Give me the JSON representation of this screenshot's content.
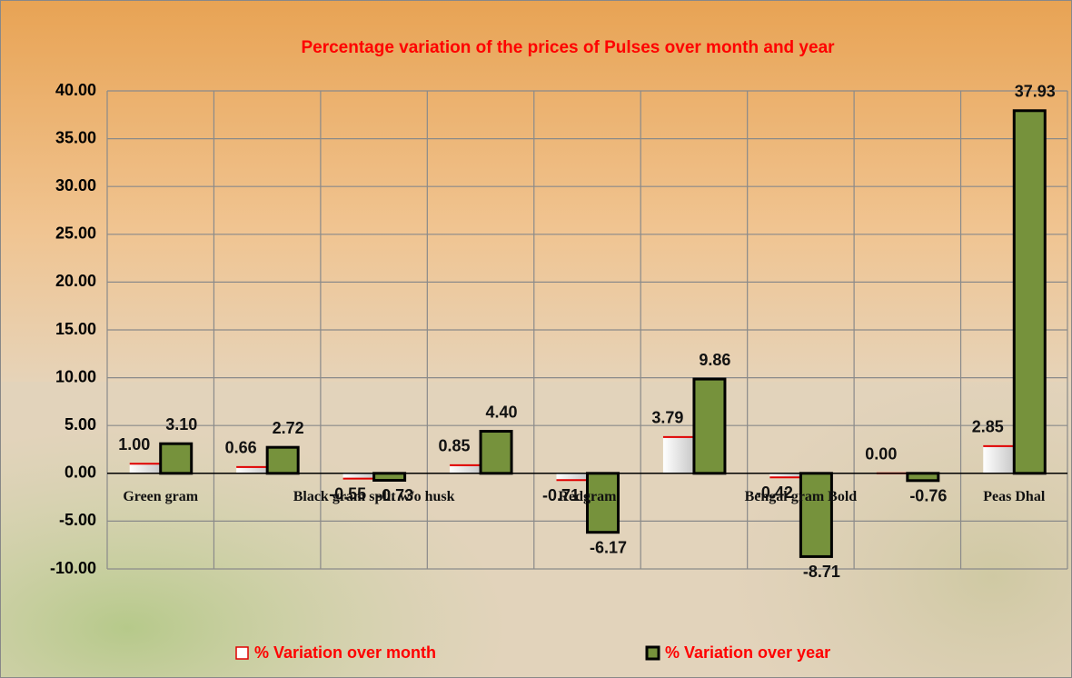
{
  "chart_data": {
    "type": "bar",
    "title": "Percentage variation of the prices of Pulses over month and year",
    "categories": [
      "Green gram",
      null,
      "Black gram split w/o husk",
      null,
      "Redgram",
      null,
      "Bengal gram Bold",
      null,
      "Peas Dhal"
    ],
    "series": [
      {
        "name": "% Variation over month",
        "color": "#ffffff",
        "edge": "#e00000",
        "values": [
          1.0,
          0.66,
          -0.55,
          0.85,
          -0.71,
          3.79,
          -0.42,
          0.0,
          2.85
        ],
        "value_labels": [
          "1.00",
          "0.66",
          "-0.55",
          "0.85",
          "-0.71",
          "3.79",
          "-0.42",
          "0.00",
          "2.85"
        ]
      },
      {
        "name": "% Variation over year",
        "color": "#76923c",
        "edge": "#000000",
        "values": [
          3.1,
          2.72,
          -0.73,
          4.4,
          -6.17,
          9.86,
          -8.71,
          -0.76,
          37.93
        ],
        "value_labels": [
          "3.10",
          "2.72",
          "-0.73",
          "4.40",
          "-6.17",
          "9.86",
          "-8.71",
          "-0.76",
          "37.93"
        ]
      }
    ],
    "ylim": [
      -10,
      40
    ],
    "yticks": [
      {
        "value": -10,
        "label": "-10.00"
      },
      {
        "value": -5,
        "label": "-5.00"
      },
      {
        "value": 0,
        "label": "0.00"
      },
      {
        "value": 5,
        "label": "5.00"
      },
      {
        "value": 10,
        "label": "10.00"
      },
      {
        "value": 15,
        "label": "15.00"
      },
      {
        "value": 20,
        "label": "20.00"
      },
      {
        "value": 25,
        "label": "25.00"
      },
      {
        "value": 30,
        "label": "30.00"
      },
      {
        "value": 35,
        "label": "35.00"
      },
      {
        "value": 40,
        "label": "40.00"
      }
    ],
    "grid": true,
    "title_color": "#ff0000",
    "legend": "bottom"
  }
}
